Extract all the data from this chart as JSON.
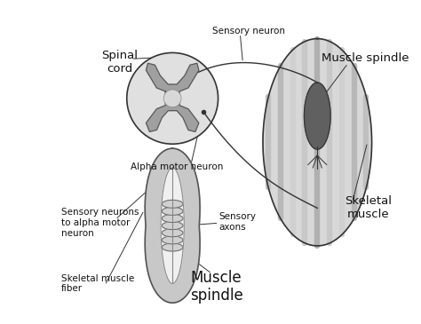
{
  "bg_color": "#ffffff",
  "labels": {
    "spinal_cord": "Spinal\ncord",
    "sensory_neuron": "Sensory neuron",
    "alpha_motor": "Alpha motor neuron",
    "muscle_spindle_top": "Muscle spindle",
    "skeletal_muscle": "Skeletal\nmuscle",
    "sensory_neurons": "Sensory neurons\nto alpha motor\nneuron",
    "sensory_axons": "Sensory\naxons",
    "muscle_spindle_bottom": "Muscle\nspindle",
    "skeletal_fiber": "Skeletal muscle\nfiber"
  },
  "colors": {
    "outline": "#333333",
    "spinal_cord_outer": "#d0d0d0",
    "spinal_cord_inner": "#a0a0a0",
    "spinal_cord_gray": "#888888",
    "muscle_fill": "#c8c8c8",
    "muscle_stripe": "#b0b0b0",
    "spindle_fill": "#c0c0c0",
    "spindle_dark": "#808080",
    "capsule_fill": "#d8d8d8",
    "capsule_outer": "#a0a0a0",
    "intrafusal_fill": "#f0f0f0",
    "annuli_color": "#888888"
  }
}
